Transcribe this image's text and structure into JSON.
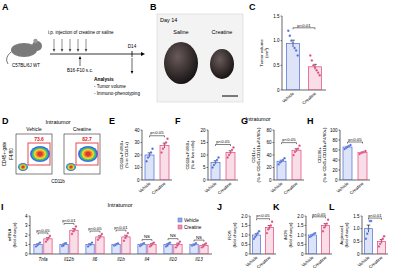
{
  "schematic": {
    "panel_label": "A",
    "mouse": "C57BL/6J WT",
    "treatment": "i.p. injection of creatine or saline",
    "inoculation": "B16-F10 s.c.",
    "endpoint": "D14",
    "analysis_title": "Analysis",
    "analysis_items": [
      "- Tumor volume",
      "- Immuno-phenotyping"
    ]
  },
  "photo": {
    "panel_label": "B",
    "title": "Day 14",
    "labels": [
      "Saline",
      "Creatine"
    ]
  },
  "flow": {
    "panel_label": "D",
    "title": "Intratumor",
    "side_label": "CD45+-gate",
    "x_label": "CD11b",
    "y_label": "F4/80",
    "plots": [
      {
        "name": "Vehicle",
        "gate_percent": 73.6
      },
      {
        "name": "Creatine",
        "gate_percent": 82.7
      }
    ]
  },
  "headings": [
    "Intratumor",
    "Intratumor"
  ],
  "chart_data": [
    {
      "panel_label": "C",
      "type": "bar",
      "y_label": "Tumor volume (cm³)",
      "categories": [
        "Vehicle",
        "Creatine"
      ],
      "values": [
        0.94,
        0.47
      ],
      "errors": [
        0.07,
        0.05
      ],
      "points": [
        [
          1.2,
          1.1,
          1.0,
          0.95,
          0.85,
          0.8,
          0.7
        ],
        [
          0.7,
          0.6,
          0.5,
          0.45,
          0.4,
          0.35,
          0.3
        ]
      ],
      "colors": [
        "#4a6bd6",
        "#e0457b"
      ],
      "ylim": [
        0,
        1.5
      ],
      "yticks": [
        0,
        0.5,
        {
          "value": 1,
          "label": "1.0"
        },
        1.5
      ],
      "annotation": "p<0.01"
    },
    {
      "panel_label": "E",
      "type": "bar",
      "y_label": "CD11b+F4/80+ (% in CD45+)",
      "categories": [
        "Vehicle",
        "Creatine"
      ],
      "values": [
        20,
        27.6
      ],
      "errors": [
        1.7,
        1.9
      ],
      "points": [
        [
          15,
          18,
          20,
          22,
          25
        ],
        [
          22,
          25,
          28,
          30,
          33
        ]
      ],
      "colors": [
        "#4a6bd6",
        "#e0457b"
      ],
      "ylim": [
        0,
        40
      ],
      "yticks": [
        0,
        10,
        20,
        30,
        40
      ],
      "annotation": "p<0.05"
    },
    {
      "panel_label": "F",
      "type": "bar",
      "y_label": "CD11b+F4/80+ (% in live cells)",
      "categories": [
        "Vehicle",
        "Creatine"
      ],
      "values": [
        7,
        11
      ],
      "errors": [
        0.7,
        0.7
      ],
      "points": [
        [
          5,
          6,
          7,
          8,
          9
        ],
        [
          9,
          10,
          11,
          12,
          13
        ]
      ],
      "colors": [
        "#4a6bd6",
        "#e0457b"
      ],
      "ylim": [
        0,
        20
      ],
      "yticks": [
        0,
        5,
        10,
        15,
        20
      ],
      "annotation": "p<0.05"
    },
    {
      "panel_label": "G",
      "type": "bar",
      "y_label": "CD11c+ (% in CD45+CD11b+F4/80+)",
      "categories": [
        "Vehicle",
        "Creatine"
      ],
      "values": [
        30,
        47.6
      ],
      "errors": [
        1.7,
        2.5
      ],
      "points": [
        [
          25,
          28,
          30,
          32,
          35
        ],
        [
          40,
          45,
          48,
          50,
          55
        ]
      ],
      "colors": [
        "#4a6bd6",
        "#e0457b"
      ],
      "ylim": [
        0,
        80
      ],
      "yticks": [
        0,
        20,
        40,
        60,
        80
      ],
      "annotation": "p<0.05"
    },
    {
      "panel_label": "H",
      "type": "bar",
      "y_label": "CD206+ (% in CD45+CD11b+F4/80+)",
      "categories": [
        "Vehicle",
        "Creatine"
      ],
      "values": [
        66,
        55
      ],
      "errors": [
        1.4,
        1.0
      ],
      "points": [
        [
          62,
          64,
          66,
          68,
          70
        ],
        [
          52,
          54,
          55,
          56,
          58
        ]
      ],
      "colors": [
        "#4a6bd6",
        "#e0457b"
      ],
      "ylim": [
        0,
        100
      ],
      "yticks": [
        0,
        20,
        40,
        60,
        80,
        100
      ],
      "annotation": "p<0.05"
    },
    {
      "panel_label": "I",
      "type": "bar",
      "y_label": "mRNA (fold change)",
      "categories": [
        "Tnfa",
        "Il12b",
        "Il6",
        "Il1b",
        "Il4",
        "Il10",
        "Il13"
      ],
      "series": [
        {
          "name": "Vehicle",
          "color": "#4a6bd6",
          "values": [
            1,
            1,
            1,
            1,
            1,
            1,
            1
          ],
          "errors": [
            0.08,
            0.07,
            0.08,
            0.04,
            0.06,
            0.09,
            0.05
          ],
          "points": [
            [
              0.8,
              0.95,
              1.05,
              1.2
            ],
            [
              0.85,
              0.9,
              1.1,
              1.15
            ],
            [
              0.8,
              1.0,
              1.0,
              1.2
            ],
            [
              0.9,
              0.95,
              1.05,
              1.1
            ],
            [
              0.85,
              0.95,
              1.05,
              1.15
            ],
            [
              0.8,
              0.9,
              1.1,
              1.2
            ],
            [
              0.9,
              0.95,
              1.0,
              1.15
            ]
          ]
        },
        {
          "name": "Creatine",
          "color": "#e0457b",
          "values": [
            1.6,
            2.5,
            1.8,
            1.8,
            1.0,
            1.0,
            0.9
          ],
          "errors": [
            0.13,
            0.17,
            0.13,
            0.17,
            0.09,
            0.13,
            0.09
          ],
          "points": [
            [
              1.3,
              1.5,
              1.7,
              1.9
            ],
            [
              2.1,
              2.4,
              2.6,
              2.9
            ],
            [
              1.5,
              1.7,
              1.9,
              2.1
            ],
            [
              1.4,
              1.7,
              1.9,
              2.2
            ],
            [
              0.8,
              0.9,
              1.1,
              1.2
            ],
            [
              0.7,
              0.9,
              1.1,
              1.3
            ],
            [
              0.7,
              0.8,
              1.0,
              1.1
            ]
          ]
        }
      ],
      "ylim": [
        0,
        4
      ],
      "yticks": [
        0,
        1,
        2,
        3,
        4
      ],
      "legend": "top-right",
      "annotations": [
        "p<0.05",
        "p<0.01",
        "p<0.05",
        "p<0.01",
        "NS",
        "NS",
        "NS"
      ]
    },
    {
      "panel_label": "J",
      "type": "bar",
      "y_label": "ROS (fold change)",
      "categories": [
        "Vehicle",
        "Creatine"
      ],
      "values": [
        1.0,
        1.4
      ],
      "errors": [
        0.07,
        0.1
      ],
      "points": [
        [
          0.8,
          0.9,
          1.0,
          1.1,
          1.2
        ],
        [
          1.1,
          1.3,
          1.4,
          1.5,
          1.7
        ]
      ],
      "colors": [
        "#4a6bd6",
        "#e0457b"
      ],
      "ylim": [
        0,
        2
      ],
      "yticks": [
        0,
        0.5,
        {
          "value": 1,
          "label": "1.0"
        },
        1.5,
        {
          "value": 2,
          "label": "2.0"
        }
      ],
      "annotation": "p<0.05"
    },
    {
      "panel_label": "K",
      "type": "bar",
      "y_label": "iNOS (fold change)",
      "categories": [
        "Vehicle",
        "Creatine"
      ],
      "values": [
        1.0,
        1.5
      ],
      "errors": [
        0.03,
        0.1
      ],
      "points": [
        [
          0.9,
          0.95,
          1.0,
          1.05,
          1.1
        ],
        [
          1.2,
          1.4,
          1.5,
          1.6,
          1.8
        ]
      ],
      "colors": [
        "#4a6bd6",
        "#e0457b"
      ],
      "ylim": [
        0,
        2
      ],
      "yticks": [
        0,
        0.5,
        {
          "value": 1,
          "label": "1.0"
        },
        1.5,
        {
          "value": 2,
          "label": "2.0"
        }
      ],
      "annotation": "p<0.05"
    },
    {
      "panel_label": "L",
      "type": "bar",
      "y_label": "Arginase1 (fold change)",
      "categories": [
        "Vehicle",
        "Creatine"
      ],
      "values": [
        1.0,
        0.5
      ],
      "errors": [
        0.14,
        0.07
      ],
      "points": [
        [
          0.6,
          0.8,
          1.0,
          1.3,
          1.3
        ],
        [
          0.3,
          0.4,
          0.5,
          0.6,
          0.7
        ]
      ],
      "colors": [
        "#4a6bd6",
        "#e0457b"
      ],
      "ylim": [
        0,
        1.5
      ],
      "yticks": [
        0,
        0.5,
        {
          "value": 1,
          "label": "1.0"
        },
        1.5
      ],
      "annotation": "p<0.01"
    }
  ]
}
